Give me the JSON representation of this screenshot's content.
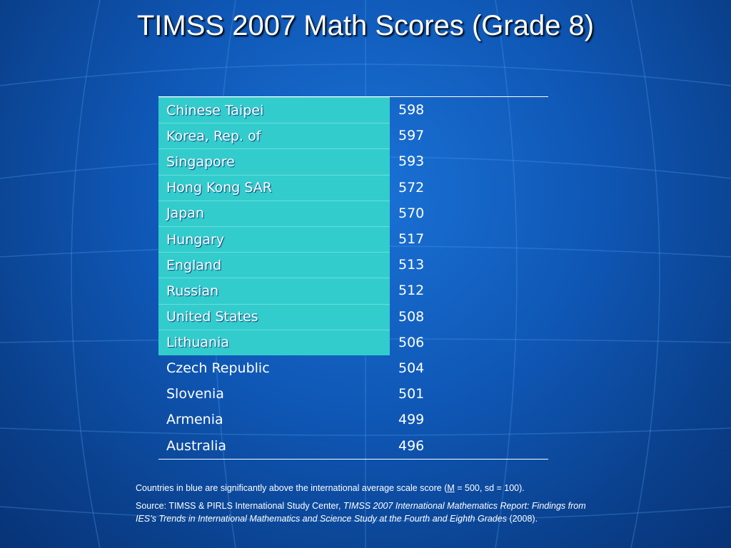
{
  "title": "TIMSS 2007 Math Scores (Grade 8)",
  "table": {
    "highlight_color": "#33cccc",
    "rows": [
      {
        "country": "Chinese Taipei",
        "score": "598",
        "highlighted": true
      },
      {
        "country": "Korea, Rep. of",
        "score": "597",
        "highlighted": true
      },
      {
        "country": "Singapore",
        "score": "593",
        "highlighted": true
      },
      {
        "country": "Hong Kong SAR",
        "score": "572",
        "highlighted": true
      },
      {
        "country": "Japan",
        "score": "570",
        "highlighted": true
      },
      {
        "country": "Hungary",
        "score": "517",
        "highlighted": true
      },
      {
        "country": "England",
        "score": "513",
        "highlighted": true
      },
      {
        "country": "Russian",
        "score": "512",
        "highlighted": true
      },
      {
        "country": "United States",
        "score": "508",
        "highlighted": true
      },
      {
        "country": "Lithuania",
        "score": "506",
        "highlighted": true
      },
      {
        "country": "Czech Republic",
        "score": "504",
        "highlighted": false
      },
      {
        "country": "Slovenia",
        "score": "501",
        "highlighted": false
      },
      {
        "country": "Armenia",
        "score": "499",
        "highlighted": false
      },
      {
        "country": "Australia",
        "score": "496",
        "highlighted": false
      }
    ]
  },
  "footnote": {
    "line1_pre": "Countries in blue are significantly above the international average scale score (",
    "line1_m": "M",
    "line1_post": " = 500, sd = 100).",
    "source_pre": "Source: TIMSS & PIRLS International Study Center, ",
    "source_italic": "TIMSS 2007 International Mathematics Report: Findings from IES’s Trends in International Mathematics and Science Study at the Fourth and Eighth Grades",
    "source_post": " (2008)."
  }
}
